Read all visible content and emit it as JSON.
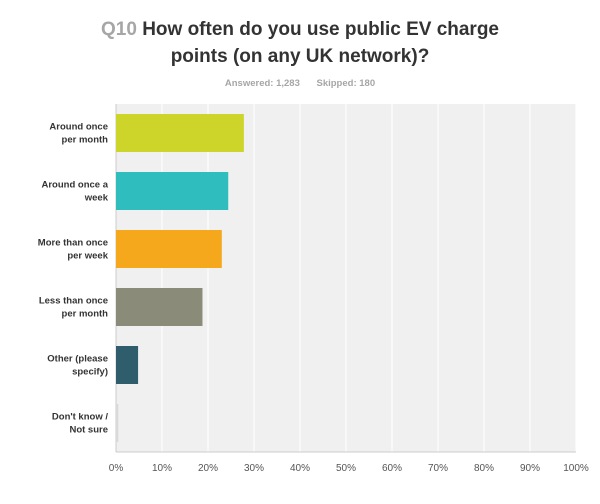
{
  "chart_data": {
    "type": "bar",
    "orientation": "horizontal",
    "title_prefix": "Q10",
    "title_lines": [
      "How often do you use public EV charge",
      "points (on any UK network)?"
    ],
    "answered_label": "Answered: 1,283",
    "skipped_label": "Skipped: 180",
    "categories": [
      [
        "Around once",
        "per month"
      ],
      [
        "Around once a",
        "week"
      ],
      [
        "More than once",
        "per week"
      ],
      [
        "Less than once",
        "per month"
      ],
      [
        "Other (please",
        "specify)"
      ],
      [
        "Don't know /",
        "Not sure"
      ]
    ],
    "values": [
      27.8,
      24.4,
      23.0,
      18.8,
      4.8,
      0.5
    ],
    "colors": [
      "#cdd42a",
      "#2fbdbd",
      "#f5a81c",
      "#8b8b7a",
      "#2f5d6b",
      "#d9d9d9"
    ],
    "xlim": [
      0,
      100
    ],
    "xticks": [
      "0%",
      "10%",
      "20%",
      "30%",
      "40%",
      "50%",
      "60%",
      "70%",
      "80%",
      "90%",
      "100%"
    ],
    "unit": "%",
    "grid": true,
    "background": "#f0f0f0"
  }
}
